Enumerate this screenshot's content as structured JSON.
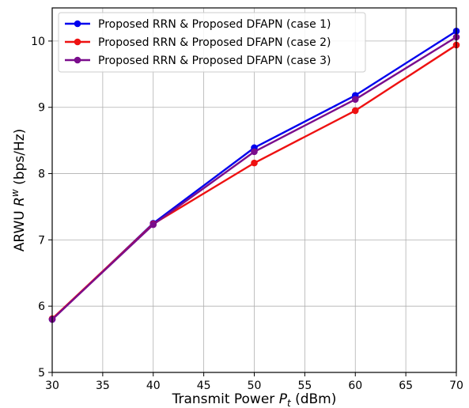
{
  "chart_data": {
    "type": "line",
    "xlabel": "Transmit Power P_t (dBm)",
    "xlabel_parts": {
      "prefix": "Transmit Power ",
      "var": "P",
      "sub": "t",
      "suffix": " (dBm)"
    },
    "ylabel": "ARWU R^w (bps/Hz)",
    "ylabel_parts": {
      "prefix": "ARWU ",
      "var": "R",
      "sup": "w",
      "suffix": " (bps/Hz)"
    },
    "xlim": [
      30,
      70
    ],
    "ylim": [
      5,
      10.5
    ],
    "xticks": [
      30,
      35,
      40,
      45,
      50,
      55,
      60,
      65,
      70
    ],
    "yticks": [
      5,
      6,
      7,
      8,
      9,
      10
    ],
    "grid": true,
    "legend_position": "upper left",
    "x": [
      30,
      40,
      50,
      60,
      70
    ],
    "series": [
      {
        "name": "Proposed RRN & Proposed DFAPN (case 1)",
        "color": "#0000ee",
        "values": [
          5.8,
          7.25,
          8.39,
          9.18,
          10.15
        ]
      },
      {
        "name": "Proposed RRN & Proposed DFAPN (case 2)",
        "color": "#ee1111",
        "values": [
          5.81,
          7.24,
          8.16,
          8.95,
          9.94
        ]
      },
      {
        "name": "Proposed RRN & Proposed DFAPN (case 3)",
        "color": "#7a0d8c",
        "values": [
          5.8,
          7.23,
          8.33,
          9.12,
          10.06
        ]
      }
    ]
  }
}
